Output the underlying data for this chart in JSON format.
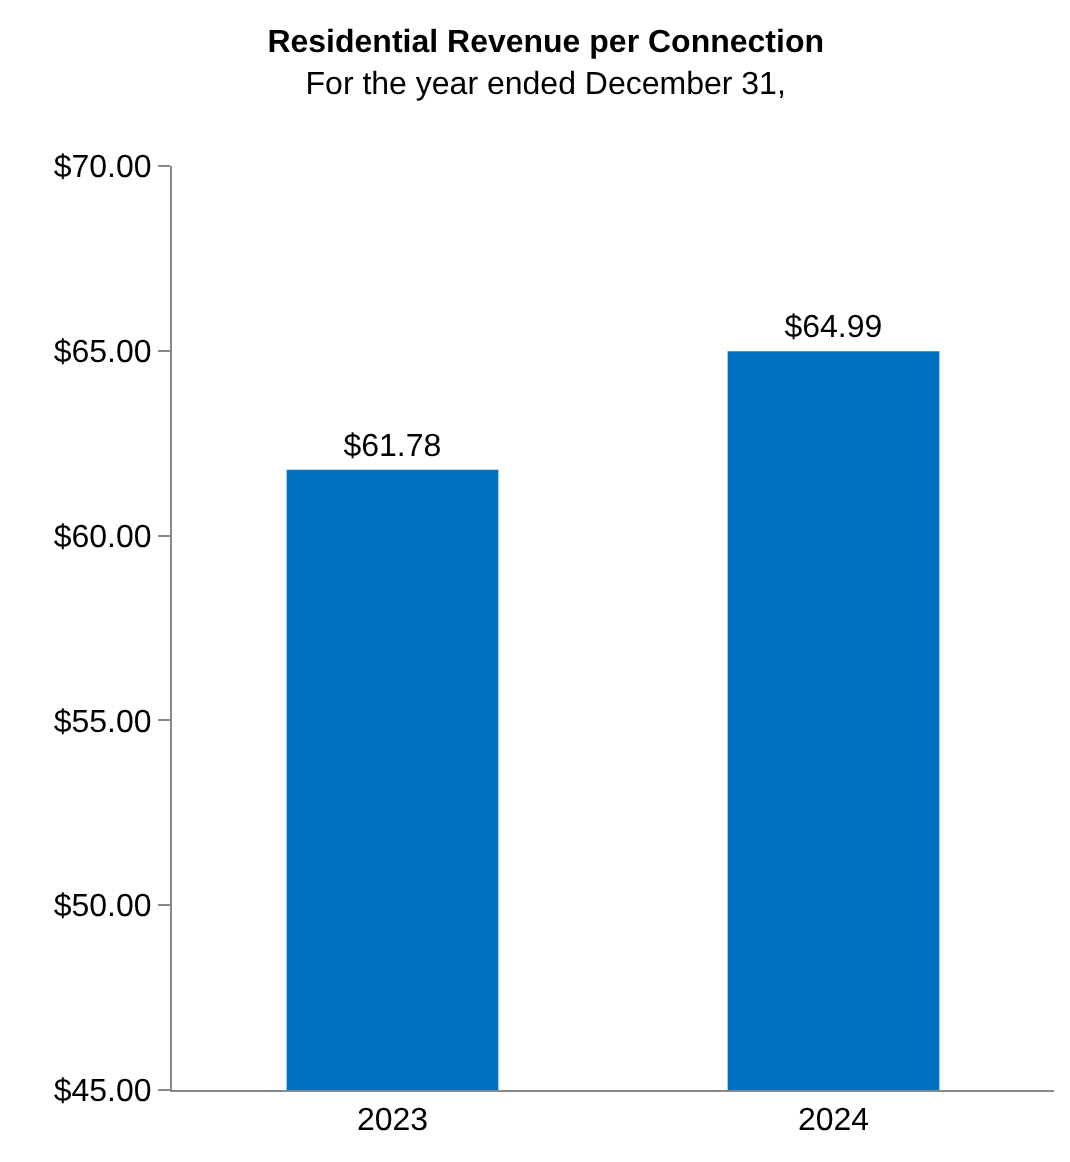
{
  "chart_data": {
    "type": "bar",
    "title": "Residential Revenue per Connection",
    "subtitle": "For the year ended December 31,",
    "categories": [
      "2023",
      "2024"
    ],
    "values": [
      61.78,
      64.99
    ],
    "color": "#0070c0",
    "value_labels": [
      "$61.78",
      "$64.99"
    ],
    "ylim": [
      45,
      70
    ],
    "yticks": [
      {
        "value": 45,
        "label": "$45.00"
      },
      {
        "value": 50,
        "label": "$50.00"
      },
      {
        "value": 55,
        "label": "$55.00"
      },
      {
        "value": 60,
        "label": "$60.00"
      },
      {
        "value": 65,
        "label": "$65.00"
      },
      {
        "value": 70,
        "label": "$70.00"
      }
    ],
    "grid": false
  }
}
